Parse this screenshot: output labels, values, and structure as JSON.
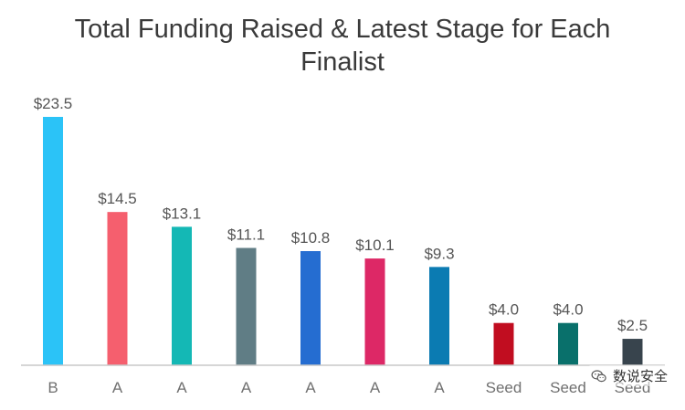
{
  "chart_data": {
    "type": "bar",
    "title": "Total Funding Raised & Latest Stage for Each Finalist",
    "xlabel": "",
    "ylabel": "",
    "ylim": [
      0,
      23.5
    ],
    "grid": false,
    "legend": "none",
    "categories": [
      "B",
      "A",
      "A",
      "A",
      "A",
      "A",
      "A",
      "Seed",
      "Seed",
      "Seed"
    ],
    "values": [
      23.5,
      14.5,
      13.1,
      11.1,
      10.8,
      10.1,
      9.3,
      4.0,
      4.0,
      2.5
    ],
    "data_labels": [
      "$23.5",
      "$14.5",
      "$13.1",
      "$11.1",
      "$10.8",
      "$10.1",
      "$9.3",
      "$4.0",
      "$4.0",
      "$2.5"
    ],
    "colors": [
      "#2bc3f7",
      "#f55f6e",
      "#14b8b5",
      "#607d85",
      "#256dd1",
      "#dd2866",
      "#0b7bb2",
      "#c10d20",
      "#09706b",
      "#38444d"
    ],
    "axis_color": "#c8c8c8"
  },
  "watermark": {
    "text": "数说安全",
    "icon": "wechat-icon"
  }
}
